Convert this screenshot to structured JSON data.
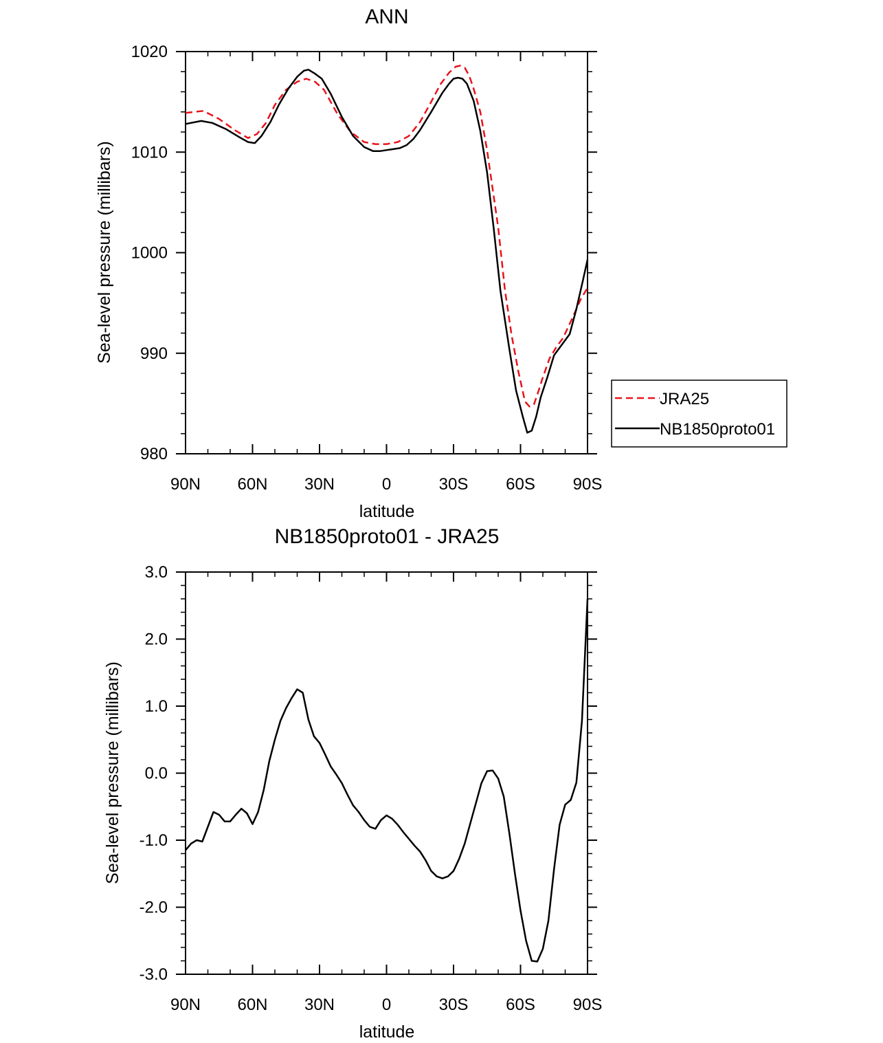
{
  "chart_data": [
    {
      "type": "line",
      "title": "ANN",
      "xlabel": "latitude",
      "ylabel": "Sea-level pressure (millibars)",
      "xlim": [
        90,
        -90
      ],
      "ylim": [
        980,
        1020
      ],
      "xticks": [
        90,
        60,
        30,
        0,
        -30,
        -60,
        -90
      ],
      "xtick_labels": [
        "90N",
        "60N",
        "30N",
        "0",
        "30S",
        "60S",
        "90S"
      ],
      "yticks": [
        980,
        990,
        1000,
        1010,
        1020
      ],
      "ytick_labels": [
        "980",
        "990",
        "1000",
        "1010",
        "1020"
      ],
      "legend_position": "right",
      "series": [
        {
          "name": "JRA25",
          "style": "dashed",
          "color": "#e8141b",
          "x": [
            90,
            82,
            75,
            68,
            62,
            58,
            54,
            50,
            45,
            40,
            36,
            32,
            28,
            22,
            16,
            10,
            5,
            0,
            -5,
            -10,
            -15,
            -20,
            -24,
            -28,
            -31,
            -33,
            -35,
            -37,
            -39,
            -42,
            -45,
            -50,
            -53,
            -56,
            -59,
            -62,
            -64,
            -66,
            -68,
            -70,
            -73,
            -76,
            -79,
            -83,
            -87,
            -90
          ],
          "values": [
            1013.9,
            1014.1,
            1013.3,
            1012.2,
            1011.4,
            1011.8,
            1012.9,
            1014.7,
            1016.2,
            1017.0,
            1017.3,
            1017.0,
            1016.2,
            1013.8,
            1012.0,
            1011.0,
            1010.8,
            1010.8,
            1011.0,
            1011.6,
            1013.0,
            1015.0,
            1016.7,
            1017.9,
            1018.5,
            1018.6,
            1018.4,
            1017.6,
            1016.3,
            1014.0,
            1010.2,
            1002.5,
            996.3,
            991.8,
            988.2,
            985.2,
            984.7,
            984.9,
            986.2,
            987.6,
            989.5,
            990.6,
            991.5,
            993.4,
            995.4,
            996.5
          ]
        },
        {
          "name": "NB1850proto01",
          "style": "solid",
          "color": "#000000",
          "x": [
            90,
            83,
            78,
            72,
            66,
            62,
            59,
            56,
            52,
            48,
            44,
            40,
            37,
            35,
            32,
            29,
            25,
            20,
            15,
            10,
            6,
            3,
            0,
            -3,
            -6,
            -9,
            -12,
            -15,
            -20,
            -25,
            -28,
            -30,
            -32,
            -34,
            -36,
            -39,
            -42,
            -45,
            -48,
            -51,
            -55,
            -58,
            -61,
            -63,
            -65,
            -67,
            -69,
            -72,
            -75,
            -79,
            -82,
            -85,
            -88,
            -90
          ],
          "values": [
            1012.8,
            1013.1,
            1012.9,
            1012.3,
            1011.5,
            1011.0,
            1010.9,
            1011.6,
            1013.0,
            1014.8,
            1016.3,
            1017.5,
            1018.1,
            1018.2,
            1017.8,
            1017.3,
            1015.8,
            1013.5,
            1011.6,
            1010.5,
            1010.1,
            1010.1,
            1010.2,
            1010.3,
            1010.4,
            1010.7,
            1011.3,
            1012.2,
            1014.0,
            1015.9,
            1016.8,
            1017.3,
            1017.4,
            1017.3,
            1016.8,
            1015.1,
            1012.1,
            1008.0,
            1002.4,
            996.2,
            990.4,
            986.3,
            983.7,
            982.1,
            982.3,
            983.7,
            985.6,
            987.6,
            989.8,
            991.0,
            991.9,
            994.4,
            997.3,
            999.3
          ]
        }
      ]
    },
    {
      "type": "line",
      "title": "NB1850proto01 - JRA25",
      "xlabel": "latitude",
      "ylabel": "Sea-level pressure (millibars)",
      "xlim": [
        90,
        -90
      ],
      "ylim": [
        -3.0,
        3.0
      ],
      "xticks": [
        90,
        60,
        30,
        0,
        -30,
        -60,
        -90
      ],
      "xtick_labels": [
        "90N",
        "60N",
        "30N",
        "0",
        "30S",
        "60S",
        "90S"
      ],
      "yticks": [
        -3,
        -2,
        -1,
        0,
        1,
        2,
        3
      ],
      "ytick_labels": [
        "-3.0",
        "-2.0",
        "-1.0",
        "0.0",
        "1.0",
        "2.0",
        "3.0"
      ],
      "series": [
        {
          "name": "NB1850proto01 - JRA25",
          "style": "solid",
          "color": "#000000",
          "x": [
            90,
            87.5,
            85,
            82.5,
            80,
            77.5,
            75,
            72.5,
            70,
            67.5,
            65,
            62.5,
            60,
            57.5,
            55,
            52.5,
            50,
            47.5,
            45,
            42.5,
            40,
            37.5,
            35,
            32.5,
            30,
            27.5,
            25,
            22.5,
            20,
            17.5,
            15,
            12.5,
            10,
            7.5,
            5,
            2.5,
            0,
            -2.5,
            -5,
            -7.5,
            -10,
            -12.5,
            -15,
            -17.5,
            -20,
            -22.5,
            -25,
            -27.5,
            -30,
            -32.5,
            -35,
            -37.5,
            -40,
            -42.5,
            -45,
            -47.5,
            -50,
            -52.5,
            -55,
            -57.5,
            -60,
            -62.5,
            -65,
            -67.5,
            -70,
            -72.5,
            -75,
            -77.5,
            -80,
            -82.5,
            -85,
            -87.5,
            -90
          ],
          "values": [
            -1.15,
            -1.05,
            -1.0,
            -1.02,
            -0.8,
            -0.58,
            -0.62,
            -0.72,
            -0.72,
            -0.62,
            -0.53,
            -0.6,
            -0.76,
            -0.58,
            -0.25,
            0.18,
            0.5,
            0.78,
            0.97,
            1.12,
            1.25,
            1.2,
            0.8,
            0.55,
            0.45,
            0.28,
            0.1,
            -0.02,
            -0.15,
            -0.32,
            -0.48,
            -0.58,
            -0.7,
            -0.8,
            -0.83,
            -0.7,
            -0.63,
            -0.68,
            -0.77,
            -0.88,
            -0.98,
            -1.08,
            -1.17,
            -1.3,
            -1.46,
            -1.54,
            -1.57,
            -1.54,
            -1.46,
            -1.28,
            -1.05,
            -0.75,
            -0.45,
            -0.15,
            0.03,
            0.04,
            -0.08,
            -0.35,
            -0.9,
            -1.5,
            -2.05,
            -2.5,
            -2.8,
            -2.81,
            -2.62,
            -2.2,
            -1.43,
            -0.77,
            -0.47,
            -0.4,
            -0.14,
            0.78,
            2.6
          ]
        }
      ]
    }
  ]
}
